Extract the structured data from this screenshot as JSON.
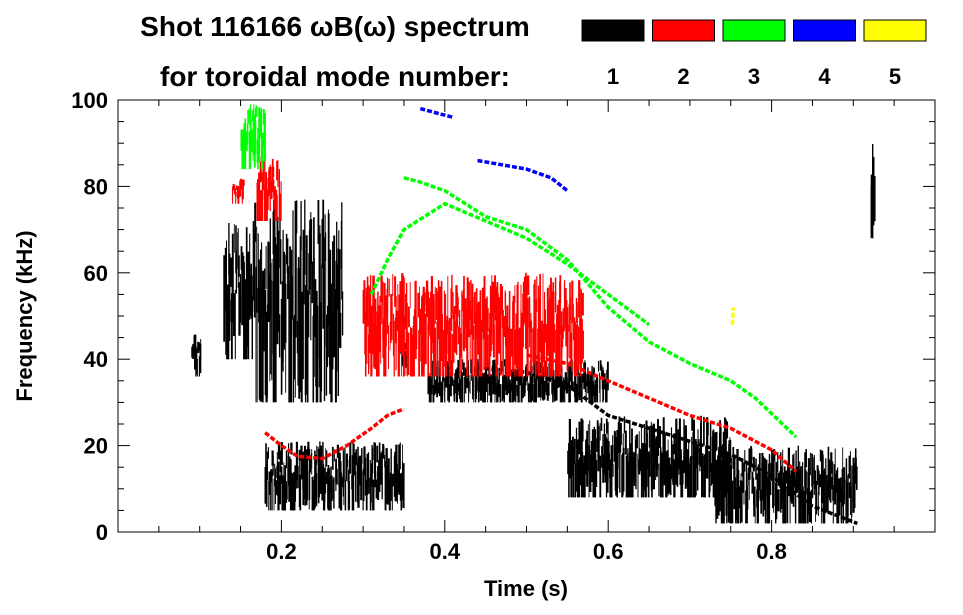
{
  "chart_data": {
    "type": "scatter",
    "title_line1": "Shot 116166 ωB(ω) spectrum",
    "title_line2": "for toroidal mode number:",
    "xlabel": "Time (s)",
    "ylabel": "Frequency (kHz)",
    "xlim": [
      0.0,
      1.0
    ],
    "ylim": [
      0,
      100
    ],
    "x_ticks": [
      0.2,
      0.4,
      0.6,
      0.8
    ],
    "x_tick_labels": [
      "0.2",
      "0.4",
      "0.6",
      "0.8"
    ],
    "y_ticks": [
      0,
      20,
      40,
      60,
      80,
      100
    ],
    "y_tick_labels": [
      "0",
      "20",
      "40",
      "60",
      "80",
      "100"
    ],
    "legend": [
      {
        "label": "1",
        "color": "#000000"
      },
      {
        "label": "2",
        "color": "#ff0000"
      },
      {
        "label": "3",
        "color": "#00ff00"
      },
      {
        "label": "4",
        "color": "#0000ff"
      },
      {
        "label": "5",
        "color": "#ffff00"
      }
    ],
    "series": [
      {
        "name": "1",
        "color": "#000000",
        "regions": [
          {
            "t": [
              0.09,
              0.102
            ],
            "f_lo": 36,
            "f_hi": 46
          },
          {
            "t": [
              0.13,
              0.165
            ],
            "f_lo": 40,
            "f_hi": 72
          },
          {
            "t": [
              0.165,
              0.275
            ],
            "f_lo": 30,
            "f_hi": 77
          },
          {
            "t": [
              0.18,
              0.35
            ],
            "f_lo": 5,
            "f_hi": 21
          },
          {
            "t": [
              0.345,
              0.355
            ],
            "f_lo": 38,
            "f_hi": 45
          },
          {
            "t": [
              0.38,
              0.6
            ],
            "f_lo": 30,
            "f_hi": 40
          },
          {
            "t": [
              0.55,
              0.75
            ],
            "f_lo": 8,
            "f_hi": 27
          },
          {
            "t": [
              0.73,
              0.905
            ],
            "f_lo": 2,
            "f_hi": 20
          },
          {
            "t": [
              0.922,
              0.926
            ],
            "f_lo": 68,
            "f_hi": 96
          }
        ],
        "ridges": [
          {
            "t": [
              0.44,
              0.5,
              0.55,
              0.6,
              0.65,
              0.7,
              0.75,
              0.8,
              0.85,
              0.905
            ],
            "f": [
              38,
              37,
              34,
              27,
              24,
              21,
              18,
              13,
              6,
              2
            ]
          }
        ]
      },
      {
        "name": "2",
        "color": "#ff0000",
        "regions": [
          {
            "t": [
              0.14,
              0.155
            ],
            "f_lo": 76,
            "f_hi": 82
          },
          {
            "t": [
              0.17,
              0.2
            ],
            "f_lo": 72,
            "f_hi": 87
          },
          {
            "t": [
              0.3,
              0.57
            ],
            "f_lo": 36,
            "f_hi": 60
          }
        ],
        "ridges": [
          {
            "t": [
              0.18,
              0.2,
              0.22,
              0.25,
              0.28,
              0.31,
              0.33,
              0.35
            ],
            "f": [
              23,
              20,
              17.5,
              17,
              20,
              24,
              27,
              28.5
            ]
          },
          {
            "t": [
              0.5,
              0.55,
              0.6,
              0.65,
              0.7,
              0.75,
              0.8,
              0.83
            ],
            "f": [
              41,
              39,
              35,
              31,
              27,
              24,
              19,
              14
            ]
          }
        ]
      },
      {
        "name": "3",
        "color": "#00ff00",
        "regions": [
          {
            "t": [
              0.15,
              0.18
            ],
            "f_lo": 84,
            "f_hi": 99
          }
        ],
        "ridges": [
          {
            "t": [
              0.35,
              0.37,
              0.4,
              0.45,
              0.5,
              0.55,
              0.6,
              0.65,
              0.7,
              0.75,
              0.78,
              0.83
            ],
            "f": [
              82,
              81,
              79,
              73,
              70,
              63,
              52,
              44,
              39,
              35,
              31,
              22
            ]
          },
          {
            "t": [
              0.31,
              0.33,
              0.35,
              0.4,
              0.45,
              0.5,
              0.55,
              0.6,
              0.65
            ],
            "f": [
              55,
              63,
              70,
              76,
              72,
              68,
              62,
              55,
              48
            ]
          }
        ]
      },
      {
        "name": "4",
        "color": "#0000ff",
        "ridges": [
          {
            "t": [
              0.37,
              0.39,
              0.41
            ],
            "f": [
              98,
              97,
              96
            ]
          },
          {
            "t": [
              0.44,
              0.47,
              0.5,
              0.53,
              0.55
            ],
            "f": [
              86,
              85,
              84,
              82,
              79
            ]
          }
        ]
      },
      {
        "name": "5",
        "color": "#ffff00",
        "ridges": [
          {
            "t": [
              0.752,
              0.753
            ],
            "f": [
              48,
              52
            ]
          }
        ]
      }
    ]
  }
}
